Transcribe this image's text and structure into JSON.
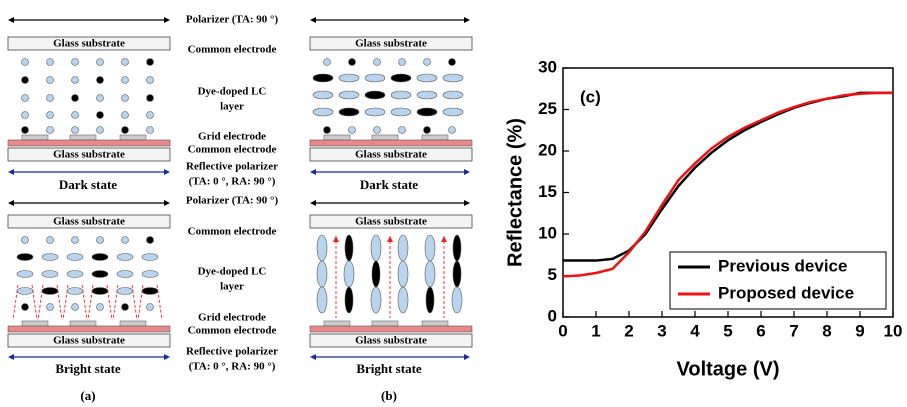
{
  "diagram": {
    "polarizer": "Polarizer (TA: 90 °)",
    "glass_substrate": "Glass substrate",
    "common_electrode": "Common electrode",
    "lc_layer": [
      "Dye-doped LC",
      "layer"
    ],
    "grid_electrode": "Grid electrode",
    "reflective_polarizer": [
      "Reflective polarizer",
      "(TA: 0 °, RA: 90 °)"
    ],
    "dark_state": "Dark state",
    "bright_state": "Bright state",
    "panel_labels": [
      "(a)",
      "(b)"
    ]
  },
  "chart_data": {
    "type": "line",
    "annotation": "(c)",
    "x_label": "Voltage (V)",
    "y_label": "Reflectance (%)",
    "x": [
      0,
      0.5,
      1,
      1.5,
      2,
      2.5,
      3,
      3.5,
      4,
      4.5,
      5,
      5.5,
      6,
      6.5,
      7,
      7.5,
      8,
      8.5,
      9,
      9.5,
      10
    ],
    "series": [
      {
        "name": "Previous device",
        "color": "#000000",
        "values": [
          6.8,
          6.8,
          6.8,
          7.0,
          8.0,
          10.0,
          13.0,
          15.8,
          18.0,
          19.8,
          21.3,
          22.5,
          23.5,
          24.4,
          25.2,
          25.8,
          26.3,
          26.6,
          27.0,
          27.0,
          27.0
        ]
      },
      {
        "name": "Proposed device",
        "color": "#ee1111",
        "values": [
          4.9,
          5.0,
          5.3,
          5.8,
          7.8,
          10.3,
          13.5,
          16.5,
          18.5,
          20.3,
          21.7,
          22.8,
          23.7,
          24.6,
          25.3,
          25.9,
          26.3,
          26.7,
          26.9,
          27.0,
          27.0
        ]
      }
    ],
    "xlim": [
      0,
      10
    ],
    "xticks": [
      0,
      1,
      2,
      3,
      4,
      5,
      6,
      7,
      8,
      9,
      10
    ],
    "ylim": [
      0,
      30
    ],
    "yticks": [
      0,
      5,
      10,
      15,
      20,
      25,
      30
    ],
    "legend": "lower right"
  }
}
